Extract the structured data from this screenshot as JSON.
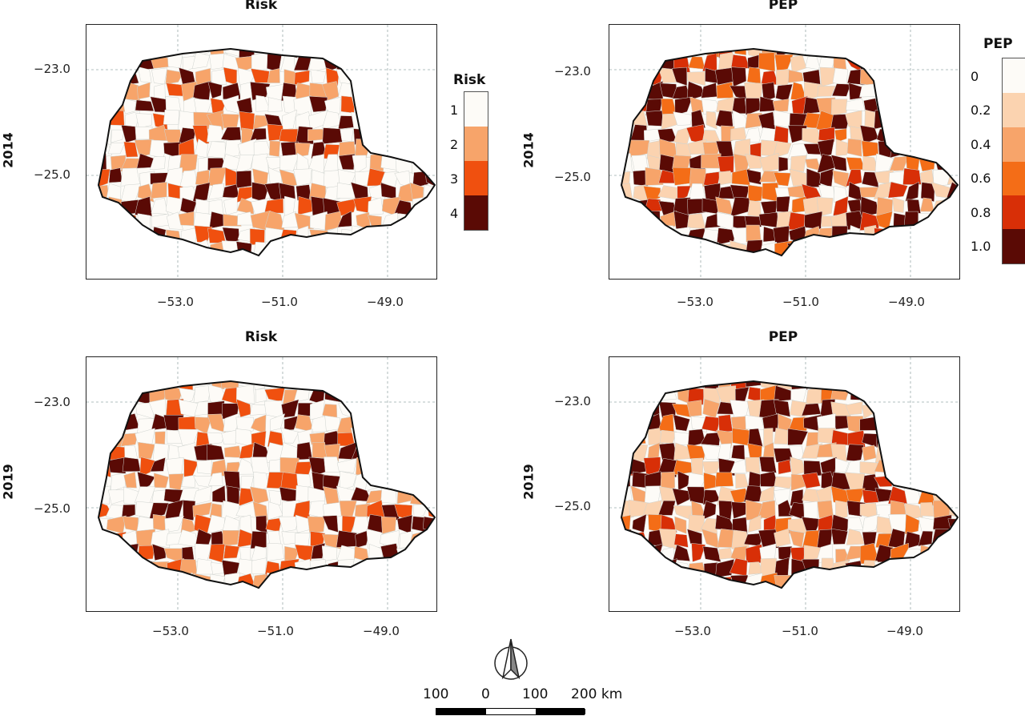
{
  "figure": {
    "panels": [
      {
        "id": "risk-2014",
        "title": "Risk",
        "row": "2014"
      },
      {
        "id": "pep-2014",
        "title": "PEP",
        "row": "2014"
      },
      {
        "id": "risk-2019",
        "title": "Risk",
        "row": "2019"
      },
      {
        "id": "pep-2019",
        "title": "PEP",
        "row": "2019"
      }
    ],
    "row_labels": [
      "2014",
      "2019"
    ],
    "lat_ticks": [
      "−23.0",
      "−25.0"
    ],
    "lon_ticks": [
      "−53.0",
      "−51.0",
      "−49.0"
    ]
  },
  "legends": {
    "risk": {
      "title": "Risk",
      "levels": [
        "1",
        "2",
        "3",
        "4"
      ],
      "colors": [
        "#fdfbf7",
        "#f7a46a",
        "#f0500f",
        "#5a0a05"
      ]
    },
    "pep": {
      "title": "PEP",
      "levels": [
        "0",
        "0.2",
        "0.4",
        "0.6",
        "0.8",
        "1.0"
      ],
      "colors": [
        "#fdfbf7",
        "#fbd3b0",
        "#f7a46a",
        "#f46d17",
        "#d82f07",
        "#5a0a05"
      ]
    }
  },
  "scale_bar": {
    "labels": [
      "100",
      "0",
      "100",
      "200 km"
    ]
  },
  "north_arrow": {
    "icon": "north-arrow-icon"
  }
}
